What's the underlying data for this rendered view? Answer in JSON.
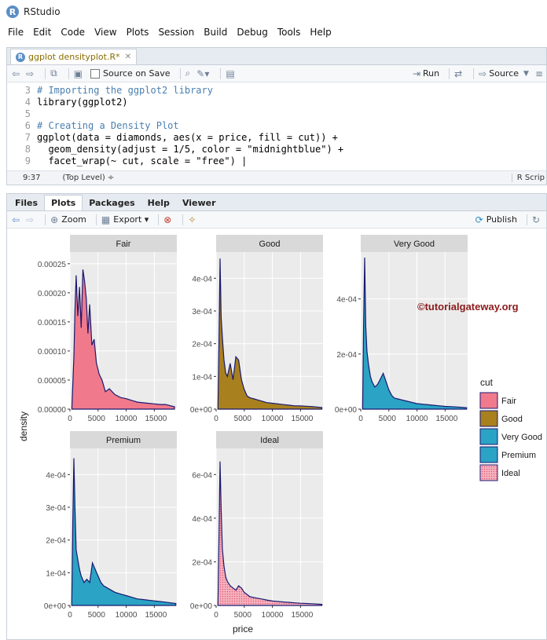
{
  "app": {
    "title": "RStudio"
  },
  "menu": [
    "File",
    "Edit",
    "Code",
    "View",
    "Plots",
    "Session",
    "Build",
    "Debug",
    "Tools",
    "Help"
  ],
  "editor": {
    "tab_label": "ggplot densityplot.R*",
    "source_on_save": "Source on Save",
    "run": "Run",
    "source": "Source",
    "lines": [
      {
        "n": "3",
        "text": "# Importing the ggplot2 library",
        "comment": true
      },
      {
        "n": "4",
        "text": "library(ggplot2)",
        "comment": false
      },
      {
        "n": "5",
        "text": "",
        "comment": false
      },
      {
        "n": "6",
        "text": "# Creating a Density Plot",
        "comment": true
      },
      {
        "n": "7",
        "text": "ggplot(data = diamonds, aes(x = price, fill = cut)) +",
        "comment": false
      },
      {
        "n": "8",
        "text": "  geom_density(adjust = 1/5, color = \"midnightblue\") +",
        "comment": false
      },
      {
        "n": "9",
        "text": "  facet_wrap(~ cut, scale = \"free\") |",
        "comment": false
      }
    ],
    "cursor_pos": "9:37",
    "scope": "(Top Level) ÷",
    "file_type": "R Scrip"
  },
  "plots_pane": {
    "tabs": [
      "Files",
      "Plots",
      "Packages",
      "Help",
      "Viewer"
    ],
    "active_tab": "Plots",
    "zoom": "Zoom",
    "export": "Export ▾",
    "publish": "Publish"
  },
  "chart_data": {
    "type": "area",
    "xlabel": "price",
    "ylabel": "density",
    "watermark": "©tutorialgateway.org",
    "legend": {
      "title": "cut",
      "entries": [
        {
          "name": "Fair",
          "color": "#f07a8c"
        },
        {
          "name": "Good",
          "color": "#a8801e"
        },
        {
          "name": "Very Good",
          "color": "#2ba3c4"
        },
        {
          "name": "Premium",
          "color": "#2ba3c4"
        },
        {
          "name": "Ideal",
          "color": "#f07a8c"
        }
      ]
    },
    "x_ticks": [
      "0",
      "5000",
      "10000",
      "15000"
    ],
    "outline_color": "#191970",
    "facets": [
      {
        "name": "Fair",
        "color": "#f07a8c",
        "ylim": [
          0,
          0.00027
        ],
        "y_ticks": [
          [
            0,
            "0.00000"
          ],
          [
            5e-05,
            "0.00005"
          ],
          [
            0.0001,
            "0.00010"
          ],
          [
            0.00015,
            "0.00015"
          ],
          [
            0.0002,
            "0.00020"
          ],
          [
            0.00025,
            "0.00025"
          ]
        ],
        "x": [
          340,
          700,
          900,
          1100,
          1400,
          1700,
          2000,
          2300,
          2600,
          2900,
          3200,
          3500,
          3900,
          4300,
          4700,
          5200,
          5700,
          6300,
          7000,
          8000,
          9000,
          10000,
          11000,
          12000,
          13000,
          14000,
          15000,
          16000,
          17000,
          18574
        ],
        "y": [
          0,
          9e-05,
          0.00017,
          0.00023,
          0.00016,
          0.00021,
          0.00014,
          0.00024,
          0.00022,
          0.00019,
          0.00013,
          0.00018,
          0.00011,
          0.00012,
          8e-05,
          6e-05,
          5e-05,
          3e-05,
          3.5e-05,
          2.5e-05,
          2e-05,
          1.8e-05,
          1.5e-05,
          1.2e-05,
          1.1e-05,
          1e-05,
          9e-06,
          8e-06,
          8e-06,
          4e-06
        ]
      },
      {
        "name": "Good",
        "color": "#a8801e",
        "ylim": [
          0,
          0.00048
        ],
        "y_ticks": [
          [
            0,
            "0e+00"
          ],
          [
            0.0001,
            "1e-04"
          ],
          [
            0.0002,
            "2e-04"
          ],
          [
            0.0003,
            "3e-04"
          ],
          [
            0.0004,
            "4e-04"
          ]
        ],
        "x": [
          327,
          500,
          700,
          900,
          1100,
          1400,
          1700,
          2000,
          2500,
          3000,
          3500,
          4000,
          4500,
          5000,
          5500,
          6000,
          7000,
          8000,
          9000,
          10000,
          11000,
          12000,
          13000,
          14000,
          15000,
          16000,
          17000,
          18788
        ],
        "y": [
          0,
          0.0002,
          0.00046,
          0.00028,
          0.00022,
          0.00015,
          0.00011,
          0.0001,
          0.00014,
          9e-05,
          0.00016,
          0.00015,
          9e-05,
          6e-05,
          4e-05,
          3.5e-05,
          3e-05,
          2.5e-05,
          2e-05,
          1.8e-05,
          1.6e-05,
          1.4e-05,
          1.2e-05,
          1e-05,
          1e-05,
          9e-06,
          8e-06,
          5e-06
        ]
      },
      {
        "name": "Very Good",
        "color": "#2ba3c4",
        "ylim": [
          0,
          0.00057
        ],
        "y_ticks": [
          [
            0,
            "0e+00"
          ],
          [
            0.0002,
            "2e-04"
          ],
          [
            0.0004,
            "4e-04"
          ]
        ],
        "x": [
          336,
          500,
          700,
          900,
          1100,
          1400,
          1700,
          2000,
          2500,
          3000,
          3500,
          4000,
          4500,
          5000,
          5500,
          6000,
          7000,
          8000,
          9000,
          10000,
          11000,
          12000,
          13000,
          14000,
          15000,
          16000,
          17000,
          18818
        ],
        "y": [
          0,
          0.0003,
          0.00055,
          0.0003,
          0.00021,
          0.00016,
          0.00012,
          0.0001,
          8e-05,
          9e-05,
          0.00011,
          0.00013,
          0.0001,
          7e-05,
          5e-05,
          4e-05,
          3.5e-05,
          3e-05,
          2.5e-05,
          2e-05,
          1.8e-05,
          1.6e-05,
          1.4e-05,
          1.2e-05,
          1e-05,
          9e-06,
          8e-06,
          5e-06
        ]
      },
      {
        "name": "Premium",
        "color": "#2ba3c4",
        "ylim": [
          0,
          0.00048
        ],
        "y_ticks": [
          [
            0,
            "0e+00"
          ],
          [
            0.0001,
            "1e-04"
          ],
          [
            0.0002,
            "2e-04"
          ],
          [
            0.0003,
            "3e-04"
          ],
          [
            0.0004,
            "4e-04"
          ]
        ],
        "x": [
          326,
          500,
          700,
          900,
          1100,
          1400,
          1700,
          2000,
          2500,
          3000,
          3500,
          4000,
          4500,
          5000,
          5500,
          6000,
          7000,
          8000,
          9000,
          10000,
          11000,
          12000,
          13000,
          14000,
          15000,
          16000,
          17000,
          18823
        ],
        "y": [
          0,
          0.00025,
          0.00045,
          0.0003,
          0.00017,
          0.00014,
          0.00011,
          9e-05,
          7e-05,
          8e-05,
          7e-05,
          0.00013,
          0.00011,
          9e-05,
          7e-05,
          6e-05,
          5e-05,
          4e-05,
          3.5e-05,
          3e-05,
          2.5e-05,
          2e-05,
          1.8e-05,
          1.6e-05,
          1.4e-05,
          1.2e-05,
          1e-05,
          6e-06
        ]
      },
      {
        "name": "Ideal",
        "color": "#f07a8c",
        "ylim": [
          0,
          0.00072
        ],
        "y_ticks": [
          [
            0,
            "0e+00"
          ],
          [
            0.0002,
            "2e-04"
          ],
          [
            0.0004,
            "4e-04"
          ],
          [
            0.0006,
            "6e-04"
          ]
        ],
        "x": [
          326,
          500,
          700,
          900,
          1100,
          1400,
          1700,
          2000,
          2500,
          3000,
          3500,
          4000,
          4500,
          5000,
          5500,
          6000,
          7000,
          8000,
          9000,
          10000,
          11000,
          12000,
          13000,
          14000,
          15000,
          16000,
          17000,
          18806
        ],
        "y": [
          0,
          0.0003,
          0.00066,
          0.00044,
          0.00026,
          0.00018,
          0.00013,
          0.00011,
          9e-05,
          8e-05,
          7e-05,
          9e-05,
          8e-05,
          6e-05,
          5e-05,
          4e-05,
          3.5e-05,
          3e-05,
          2.5e-05,
          2e-05,
          1.8e-05,
          1.6e-05,
          1.4e-05,
          1.2e-05,
          1e-05,
          9e-06,
          8e-06,
          5e-06
        ]
      }
    ]
  }
}
